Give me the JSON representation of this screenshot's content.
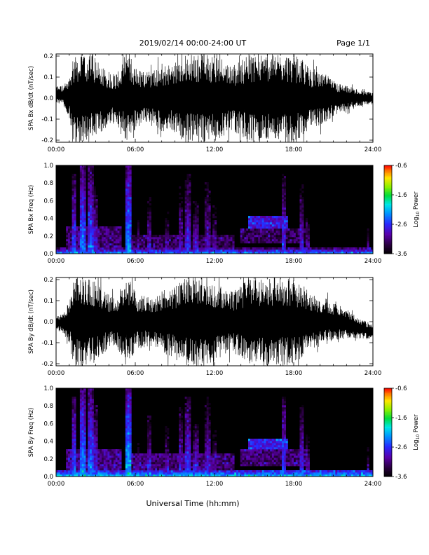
{
  "header": {
    "title": "2019/02/14  00:00-24:00 UT",
    "page": "Page 1/1"
  },
  "x_axis": {
    "label": "Universal Time (hh:mm)",
    "ticks": [
      "00:00",
      "06:00",
      "12:00",
      "18:00",
      "24:00"
    ],
    "range_hours": [
      0,
      24
    ]
  },
  "colorbar": {
    "label_prefix": "Log",
    "label_sub": "10",
    "label_suffix": " Power",
    "ticks": [
      "-0.6",
      "-1.6",
      "-2.6",
      "-3.6"
    ],
    "range": [
      -3.6,
      -0.6
    ],
    "colormap": "rainbow (black-purple-blue-cyan-green-yellow-red)"
  },
  "chart_data": [
    {
      "type": "line",
      "id": "bx-dbdt",
      "ylabel": "SPA Bx dB/dt (nT/sec)",
      "ylim": [
        -0.21,
        0.21
      ],
      "yticks": [
        "0.2",
        "0.1",
        "0.0",
        "-0.1",
        "-0.2"
      ],
      "xlim": [
        0,
        24
      ],
      "line_color": "#000000",
      "envelope": {
        "x_hours": [
          0,
          0.5,
          1.0,
          1.3,
          1.6,
          2.0,
          2.5,
          3.0,
          3.5,
          4.0,
          4.5,
          5.0,
          5.3,
          5.5,
          5.8,
          6.2,
          6.8,
          7.5,
          8.0,
          8.5,
          9.0,
          9.5,
          10.0,
          10.5,
          11.0,
          11.5,
          12.0,
          12.5,
          13.0,
          13.5,
          14.0,
          14.5,
          15.0,
          15.5,
          16.0,
          16.5,
          17.0,
          17.5,
          18.0,
          18.5,
          19.0,
          19.5,
          20.0,
          20.5,
          21.0,
          21.5,
          22.0,
          22.5,
          23.0,
          23.5,
          24.0
        ],
        "amplitude": [
          0.04,
          0.05,
          0.09,
          0.21,
          0.21,
          0.21,
          0.21,
          0.19,
          0.16,
          0.13,
          0.12,
          0.16,
          0.21,
          0.21,
          0.18,
          0.14,
          0.13,
          0.14,
          0.16,
          0.16,
          0.17,
          0.2,
          0.21,
          0.21,
          0.21,
          0.21,
          0.21,
          0.2,
          0.17,
          0.16,
          0.18,
          0.21,
          0.21,
          0.21,
          0.21,
          0.21,
          0.21,
          0.21,
          0.21,
          0.19,
          0.16,
          0.14,
          0.13,
          0.11,
          0.09,
          0.07,
          0.06,
          0.05,
          0.04,
          0.03,
          0.03
        ]
      },
      "trend": {
        "x_hours": [
          0,
          1,
          2,
          3,
          6,
          12,
          18,
          21,
          22,
          23,
          24
        ],
        "value": [
          0.02,
          0.0,
          0.0,
          0.0,
          0.0,
          0.0,
          0.0,
          0.0,
          0.0,
          0.0,
          0.0
        ]
      }
    },
    {
      "type": "heatmap",
      "id": "bx-freq",
      "ylabel": "SPA Bx Freq (Hz)",
      "ylim": [
        0,
        1.0
      ],
      "yticks": [
        "1.0",
        "0.8",
        "0.6",
        "0.4",
        "0.2",
        "0.0"
      ],
      "xlim": [
        0,
        24
      ],
      "value_range": [
        -3.6,
        -0.6
      ],
      "baseline_band": {
        "freq_max": 0.06,
        "level": -2.5
      },
      "spikes": [
        {
          "t": 1.4,
          "width": 0.15,
          "fmax": 0.9,
          "level": -2.6
        },
        {
          "t": 2.0,
          "width": 0.2,
          "fmax": 1.0,
          "level": -2.4
        },
        {
          "t": 2.6,
          "width": 0.2,
          "fmax": 1.0,
          "level": -2.5
        },
        {
          "t": 3.0,
          "width": 0.15,
          "fmax": 0.8,
          "level": -2.8
        },
        {
          "t": 5.5,
          "width": 0.25,
          "fmax": 1.0,
          "level": -2.3
        },
        {
          "t": 6.2,
          "width": 0.1,
          "fmax": 0.5,
          "level": -3.0
        },
        {
          "t": 7.1,
          "width": 0.15,
          "fmax": 0.7,
          "level": -2.9
        },
        {
          "t": 8.4,
          "width": 0.12,
          "fmax": 0.5,
          "level": -3.0
        },
        {
          "t": 9.4,
          "width": 0.15,
          "fmax": 0.8,
          "level": -2.9
        },
        {
          "t": 10.0,
          "width": 0.2,
          "fmax": 0.9,
          "level": -2.7
        },
        {
          "t": 10.6,
          "width": 0.2,
          "fmax": 0.6,
          "level": -2.8
        },
        {
          "t": 11.5,
          "width": 0.2,
          "fmax": 0.9,
          "level": -2.9
        },
        {
          "t": 12.0,
          "width": 0.2,
          "fmax": 0.6,
          "level": -3.0
        },
        {
          "t": 17.2,
          "width": 0.15,
          "fmax": 0.9,
          "level": -2.7
        },
        {
          "t": 18.6,
          "width": 0.2,
          "fmax": 0.8,
          "level": -2.8
        },
        {
          "t": 19.0,
          "width": 0.15,
          "fmax": 0.5,
          "level": -3.0
        },
        {
          "t": 23.6,
          "width": 0.12,
          "fmax": 0.4,
          "level": -3.1
        }
      ],
      "patches": [
        {
          "t0": 14.5,
          "t1": 17.5,
          "f0": 0.28,
          "f1": 0.42,
          "level": -2.6
        },
        {
          "t0": 14.0,
          "t1": 19.0,
          "f0": 0.12,
          "f1": 0.28,
          "level": -3.1
        },
        {
          "t0": 0.8,
          "t1": 5.0,
          "f0": 0.05,
          "f1": 0.3,
          "level": -3.0
        },
        {
          "t0": 5.2,
          "t1": 13.5,
          "f0": 0.05,
          "f1": 0.22,
          "level": -3.1
        }
      ]
    },
    {
      "type": "line",
      "id": "by-dbdt",
      "ylabel": "SPA By dB/dt (nT/sec)",
      "ylim": [
        -0.21,
        0.21
      ],
      "yticks": [
        "0.2",
        "0.1",
        "0.0",
        "-0.1",
        "-0.2"
      ],
      "xlim": [
        0,
        24
      ],
      "line_color": "#000000",
      "envelope": {
        "x_hours": [
          0,
          0.5,
          1.0,
          1.3,
          1.6,
          2.0,
          2.5,
          3.0,
          3.5,
          4.0,
          4.5,
          5.0,
          5.3,
          5.5,
          5.8,
          6.2,
          6.8,
          7.5,
          8.0,
          8.5,
          9.0,
          9.5,
          10.0,
          10.5,
          11.0,
          11.5,
          12.0,
          12.5,
          13.0,
          13.5,
          14.0,
          14.5,
          15.0,
          15.5,
          16.0,
          16.5,
          17.0,
          17.5,
          18.0,
          18.5,
          19.0,
          19.5,
          20.0,
          20.5,
          21.0,
          21.5,
          22.0,
          22.5,
          23.0,
          23.5,
          24.0
        ],
        "amplitude": [
          0.03,
          0.05,
          0.1,
          0.21,
          0.21,
          0.21,
          0.21,
          0.2,
          0.16,
          0.13,
          0.12,
          0.17,
          0.21,
          0.21,
          0.17,
          0.13,
          0.12,
          0.13,
          0.15,
          0.16,
          0.17,
          0.2,
          0.21,
          0.21,
          0.21,
          0.2,
          0.19,
          0.17,
          0.15,
          0.15,
          0.17,
          0.2,
          0.21,
          0.21,
          0.21,
          0.21,
          0.21,
          0.21,
          0.2,
          0.18,
          0.15,
          0.13,
          0.12,
          0.11,
          0.09,
          0.08,
          0.07,
          0.06,
          0.05,
          0.04,
          0.04
        ]
      },
      "trend": {
        "x_hours": [
          0,
          1,
          2,
          3,
          6,
          12,
          18,
          21,
          22,
          23,
          24
        ],
        "value": [
          -0.01,
          0.0,
          0.0,
          0.0,
          0.0,
          0.0,
          0.0,
          0.0,
          -0.01,
          -0.03,
          -0.05
        ]
      }
    },
    {
      "type": "heatmap",
      "id": "by-freq",
      "ylabel": "SPA By Freq (Hz)",
      "ylim": [
        0,
        1.0
      ],
      "yticks": [
        "1.0",
        "0.8",
        "0.6",
        "0.4",
        "0.2",
        "0.0"
      ],
      "xlim": [
        0,
        24
      ],
      "value_range": [
        -3.6,
        -0.6
      ],
      "baseline_band": {
        "freq_max": 0.08,
        "level": -2.3
      },
      "spikes": [
        {
          "t": 1.4,
          "width": 0.15,
          "fmax": 0.9,
          "level": -2.5
        },
        {
          "t": 2.0,
          "width": 0.2,
          "fmax": 1.0,
          "level": -2.3
        },
        {
          "t": 2.6,
          "width": 0.2,
          "fmax": 1.0,
          "level": -2.4
        },
        {
          "t": 3.0,
          "width": 0.15,
          "fmax": 0.8,
          "level": -2.7
        },
        {
          "t": 5.5,
          "width": 0.25,
          "fmax": 1.0,
          "level": -2.2
        },
        {
          "t": 6.2,
          "width": 0.1,
          "fmax": 0.5,
          "level": -3.0
        },
        {
          "t": 7.1,
          "width": 0.15,
          "fmax": 0.7,
          "level": -2.8
        },
        {
          "t": 8.4,
          "width": 0.12,
          "fmax": 0.6,
          "level": -2.9
        },
        {
          "t": 9.4,
          "width": 0.15,
          "fmax": 0.8,
          "level": -2.8
        },
        {
          "t": 10.0,
          "width": 0.2,
          "fmax": 0.9,
          "level": -2.6
        },
        {
          "t": 10.6,
          "width": 0.2,
          "fmax": 0.6,
          "level": -2.7
        },
        {
          "t": 11.5,
          "width": 0.2,
          "fmax": 0.9,
          "level": -2.8
        },
        {
          "t": 12.0,
          "width": 0.2,
          "fmax": 0.6,
          "level": -2.9
        },
        {
          "t": 17.2,
          "width": 0.15,
          "fmax": 0.9,
          "level": -2.6
        },
        {
          "t": 18.6,
          "width": 0.2,
          "fmax": 0.8,
          "level": -2.7
        },
        {
          "t": 19.0,
          "width": 0.15,
          "fmax": 0.5,
          "level": -2.9
        },
        {
          "t": 23.6,
          "width": 0.12,
          "fmax": 0.4,
          "level": -3.0
        }
      ],
      "patches": [
        {
          "t0": 14.5,
          "t1": 17.5,
          "f0": 0.3,
          "f1": 0.42,
          "level": -2.5
        },
        {
          "t0": 14.0,
          "t1": 19.0,
          "f0": 0.12,
          "f1": 0.3,
          "level": -3.0
        },
        {
          "t0": 0.8,
          "t1": 5.0,
          "f0": 0.06,
          "f1": 0.32,
          "level": -2.9
        },
        {
          "t0": 5.2,
          "t1": 13.5,
          "f0": 0.06,
          "f1": 0.25,
          "level": -3.0
        }
      ]
    }
  ]
}
